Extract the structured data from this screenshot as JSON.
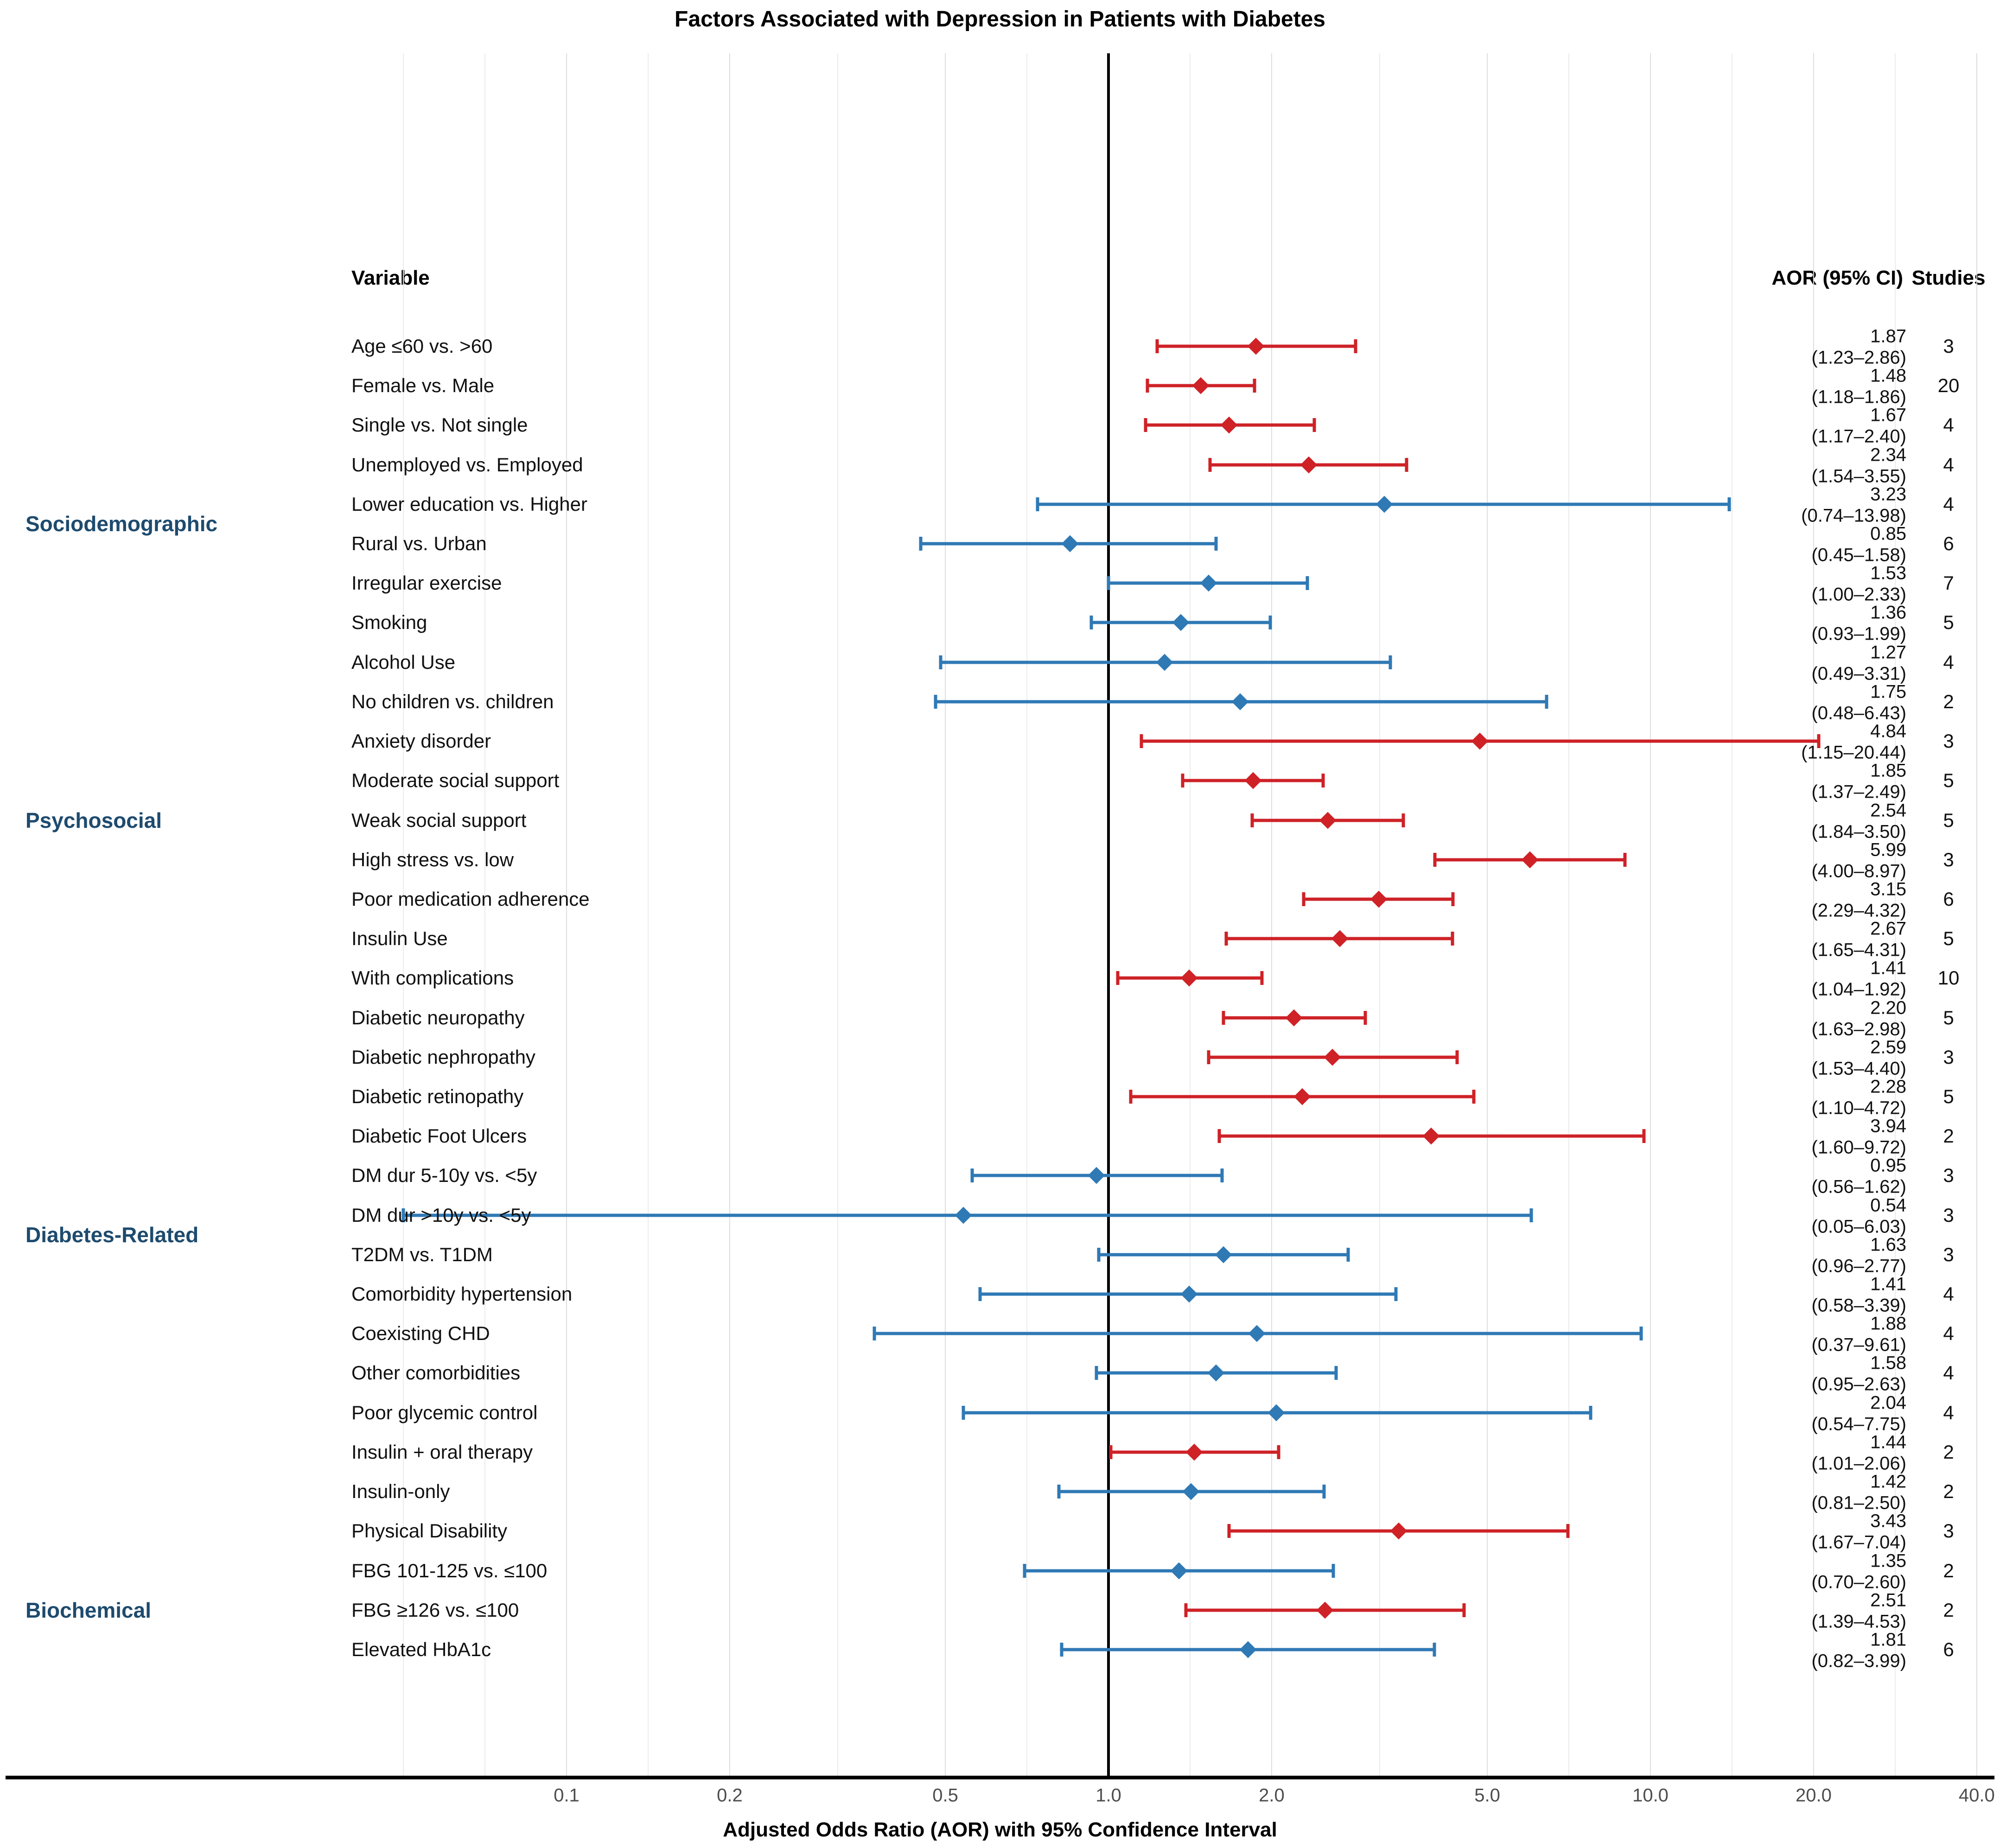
{
  "title": "Factors Associated with Depression in Patients with Diabetes",
  "columns": {
    "variable": "Variable",
    "aor": "AOR (95% CI)",
    "studies": "Studies"
  },
  "colors": {
    "significant": "#CE2227",
    "nonsignificant": "#2F79B5",
    "category_label": "#1E4B6E",
    "reference_line": "#000000",
    "tick_label": "#4D4D4D"
  },
  "chart_data": {
    "type": "scatter",
    "subtype": "forest-plot",
    "title": "Factors Associated with Depression in Patients with Diabetes",
    "xlabel": "Adjusted Odds Ratio (AOR) with 95% Confidence Interval",
    "x_scale": "log",
    "xlim": [
      0.04,
      45
    ],
    "grid": "vertical",
    "reference_line": 1.0,
    "x_ticks": [
      {
        "v": 0.1,
        "label": "0.1"
      },
      {
        "v": 0.2,
        "label": "0.2"
      },
      {
        "v": 0.5,
        "label": "0.5"
      },
      {
        "v": 1.0,
        "label": "1.0"
      },
      {
        "v": 2.0,
        "label": "2.0"
      },
      {
        "v": 5.0,
        "label": "5.0"
      },
      {
        "v": 10.0,
        "label": "10.0"
      },
      {
        "v": 20.0,
        "label": "20.0"
      },
      {
        "v": 40.0,
        "label": "40.0"
      }
    ],
    "categories": [
      {
        "label": "Sociodemographic",
        "anchor_row": 4,
        "between": true
      },
      {
        "label": "Psychosocial",
        "anchor_row": 12,
        "between": false
      },
      {
        "label": "Diabetes-Related",
        "anchor_row": 22,
        "between": true
      },
      {
        "label": "Biochemical",
        "anchor_row": 32,
        "between": false
      }
    ],
    "rows": [
      {
        "label": "Age ≤60 vs. >60",
        "aor": 1.87,
        "low": 1.23,
        "high": 2.86,
        "aor_text": "1.87",
        "ci_text": "(1.23–2.86)",
        "studies": "3",
        "significant": true
      },
      {
        "label": "Female vs. Male",
        "aor": 1.48,
        "low": 1.18,
        "high": 1.86,
        "aor_text": "1.48",
        "ci_text": "(1.18–1.86)",
        "studies": "20",
        "significant": true
      },
      {
        "label": "Single vs. Not single",
        "aor": 1.67,
        "low": 1.17,
        "high": 2.4,
        "aor_text": "1.67",
        "ci_text": "(1.17–2.40)",
        "studies": "4",
        "significant": true
      },
      {
        "label": "Unemployed vs. Employed",
        "aor": 2.34,
        "low": 1.54,
        "high": 3.55,
        "aor_text": "2.34",
        "ci_text": "(1.54–3.55)",
        "studies": "4",
        "significant": true
      },
      {
        "label": "Lower education vs. Higher",
        "aor": 3.23,
        "low": 0.74,
        "high": 13.98,
        "aor_text": "3.23",
        "ci_text": "(0.74–13.98)",
        "studies": "4",
        "significant": false
      },
      {
        "label": "Rural vs. Urban",
        "aor": 0.85,
        "low": 0.45,
        "high": 1.58,
        "aor_text": "0.85",
        "ci_text": "(0.45–1.58)",
        "studies": "6",
        "significant": false
      },
      {
        "label": "Irregular exercise",
        "aor": 1.53,
        "low": 1.0,
        "high": 2.33,
        "aor_text": "1.53",
        "ci_text": "(1.00–2.33)",
        "studies": "7",
        "significant": false
      },
      {
        "label": "Smoking",
        "aor": 1.36,
        "low": 0.93,
        "high": 1.99,
        "aor_text": "1.36",
        "ci_text": "(0.93–1.99)",
        "studies": "5",
        "significant": false
      },
      {
        "label": "Alcohol Use",
        "aor": 1.27,
        "low": 0.49,
        "high": 3.31,
        "aor_text": "1.27",
        "ci_text": "(0.49–3.31)",
        "studies": "4",
        "significant": false
      },
      {
        "label": "No children vs. children",
        "aor": 1.75,
        "low": 0.48,
        "high": 6.43,
        "aor_text": "1.75",
        "ci_text": "(0.48–6.43)",
        "studies": "2",
        "significant": false
      },
      {
        "label": "Anxiety disorder",
        "aor": 4.84,
        "low": 1.15,
        "high": 20.44,
        "aor_text": "4.84",
        "ci_text": "(1.15–20.44)",
        "studies": "3",
        "significant": true
      },
      {
        "label": "Moderate social support",
        "aor": 1.85,
        "low": 1.37,
        "high": 2.49,
        "aor_text": "1.85",
        "ci_text": "(1.37–2.49)",
        "studies": "5",
        "significant": true
      },
      {
        "label": "Weak social support",
        "aor": 2.54,
        "low": 1.84,
        "high": 3.5,
        "aor_text": "2.54",
        "ci_text": "(1.84–3.50)",
        "studies": "5",
        "significant": true
      },
      {
        "label": "High stress vs. low",
        "aor": 5.99,
        "low": 4.0,
        "high": 8.97,
        "aor_text": "5.99",
        "ci_text": "(4.00–8.97)",
        "studies": "3",
        "significant": true
      },
      {
        "label": "Poor medication adherence",
        "aor": 3.15,
        "low": 2.29,
        "high": 4.32,
        "aor_text": "3.15",
        "ci_text": "(2.29–4.32)",
        "studies": "6",
        "significant": true
      },
      {
        "label": "Insulin Use",
        "aor": 2.67,
        "low": 1.65,
        "high": 4.31,
        "aor_text": "2.67",
        "ci_text": "(1.65–4.31)",
        "studies": "5",
        "significant": true
      },
      {
        "label": "With complications",
        "aor": 1.41,
        "low": 1.04,
        "high": 1.92,
        "aor_text": "1.41",
        "ci_text": "(1.04–1.92)",
        "studies": "10",
        "significant": true
      },
      {
        "label": "Diabetic neuropathy",
        "aor": 2.2,
        "low": 1.63,
        "high": 2.98,
        "aor_text": "2.20",
        "ci_text": "(1.63–2.98)",
        "studies": "5",
        "significant": true
      },
      {
        "label": "Diabetic nephropathy",
        "aor": 2.59,
        "low": 1.53,
        "high": 4.4,
        "aor_text": "2.59",
        "ci_text": "(1.53–4.40)",
        "studies": "3",
        "significant": true
      },
      {
        "label": "Diabetic retinopathy",
        "aor": 2.28,
        "low": 1.1,
        "high": 4.72,
        "aor_text": "2.28",
        "ci_text": "(1.10–4.72)",
        "studies": "5",
        "significant": true
      },
      {
        "label": "Diabetic Foot Ulcers",
        "aor": 3.94,
        "low": 1.6,
        "high": 9.72,
        "aor_text": "3.94",
        "ci_text": "(1.60–9.72)",
        "studies": "2",
        "significant": true
      },
      {
        "label": "DM dur 5-10y vs. <5y",
        "aor": 0.95,
        "low": 0.56,
        "high": 1.62,
        "aor_text": "0.95",
        "ci_text": "(0.56–1.62)",
        "studies": "3",
        "significant": false
      },
      {
        "label": "DM dur >10y vs. <5y",
        "aor": 0.54,
        "low": 0.05,
        "high": 6.03,
        "aor_text": "0.54",
        "ci_text": "(0.05–6.03)",
        "studies": "3",
        "significant": false
      },
      {
        "label": "T2DM vs. T1DM",
        "aor": 1.63,
        "low": 0.96,
        "high": 2.77,
        "aor_text": "1.63",
        "ci_text": "(0.96–2.77)",
        "studies": "3",
        "significant": false
      },
      {
        "label": "Comorbidity hypertension",
        "aor": 1.41,
        "low": 0.58,
        "high": 3.39,
        "aor_text": "1.41",
        "ci_text": "(0.58–3.39)",
        "studies": "4",
        "significant": false
      },
      {
        "label": "Coexisting CHD",
        "aor": 1.88,
        "low": 0.37,
        "high": 9.61,
        "aor_text": "1.88",
        "ci_text": "(0.37–9.61)",
        "studies": "4",
        "significant": false
      },
      {
        "label": "Other comorbidities",
        "aor": 1.58,
        "low": 0.95,
        "high": 2.63,
        "aor_text": "1.58",
        "ci_text": "(0.95–2.63)",
        "studies": "4",
        "significant": false
      },
      {
        "label": "Poor glycemic control",
        "aor": 2.04,
        "low": 0.54,
        "high": 7.75,
        "aor_text": "2.04",
        "ci_text": "(0.54–7.75)",
        "studies": "4",
        "significant": false
      },
      {
        "label": "Insulin + oral therapy",
        "aor": 1.44,
        "low": 1.01,
        "high": 2.06,
        "aor_text": "1.44",
        "ci_text": "(1.01–2.06)",
        "studies": "2",
        "significant": true
      },
      {
        "label": "Insulin-only",
        "aor": 1.42,
        "low": 0.81,
        "high": 2.5,
        "aor_text": "1.42",
        "ci_text": "(0.81–2.50)",
        "studies": "2",
        "significant": false
      },
      {
        "label": "Physical Disability",
        "aor": 3.43,
        "low": 1.67,
        "high": 7.04,
        "aor_text": "3.43",
        "ci_text": "(1.67–7.04)",
        "studies": "3",
        "significant": true
      },
      {
        "label": "FBG 101-125 vs. ≤100",
        "aor": 1.35,
        "low": 0.7,
        "high": 2.6,
        "aor_text": "1.35",
        "ci_text": "(0.70–2.60)",
        "studies": "2",
        "significant": false
      },
      {
        "label": "FBG ≥126 vs. ≤100",
        "aor": 2.51,
        "low": 1.39,
        "high": 4.53,
        "aor_text": "2.51",
        "ci_text": "(1.39–4.53)",
        "studies": "2",
        "significant": true
      },
      {
        "label": "Elevated HbA1c",
        "aor": 1.81,
        "low": 0.82,
        "high": 3.99,
        "aor_text": "1.81",
        "ci_text": "(0.82–3.99)",
        "studies": "6",
        "significant": false
      }
    ]
  }
}
